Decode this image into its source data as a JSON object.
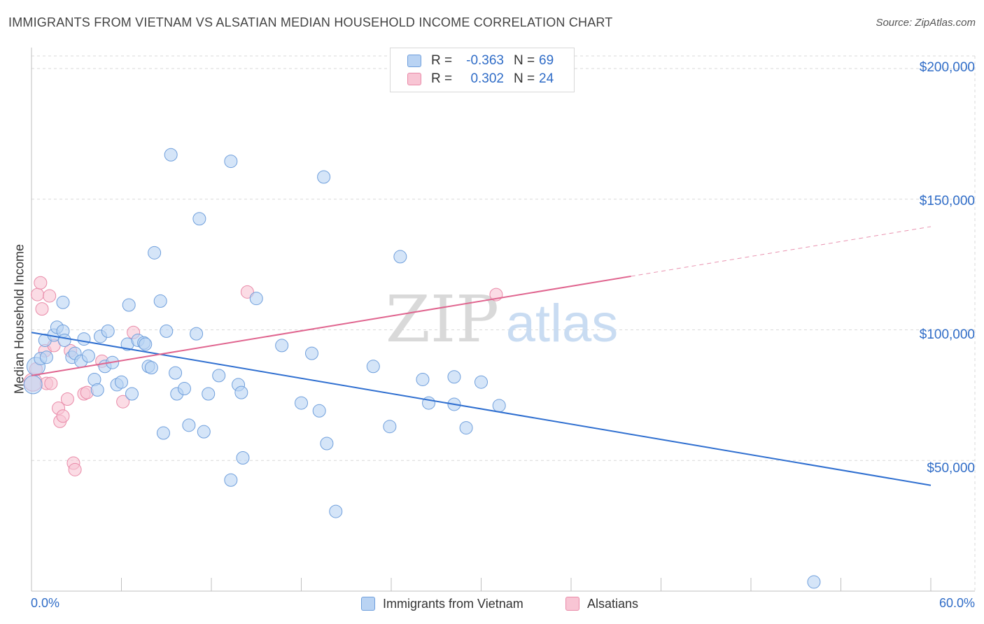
{
  "title": "IMMIGRANTS FROM VIETNAM VS ALSATIAN MEDIAN HOUSEHOLD INCOME CORRELATION CHART",
  "source": "Source: ZipAtlas.com",
  "watermark": {
    "zip": "ZIP",
    "atlas": "atlas"
  },
  "legend": {
    "series": [
      {
        "name": "Immigrants from Vietnam",
        "r_label": "R =",
        "r_value": "-0.363",
        "n_label": "N =",
        "n_value": "69",
        "fill": "#b9d3f3",
        "stroke": "#6f9fdc"
      },
      {
        "name": "Alsatians",
        "r_label": "R =",
        "r_value": "0.302",
        "n_label": "N =",
        "n_value": "24",
        "fill": "#f8c5d4",
        "stroke": "#e98aa8"
      }
    ]
  },
  "colors": {
    "blue_line": "#2f6fd0",
    "pink_line": "#e0658f",
    "axis_text": "#2f6cc7",
    "grid": "#d9d9d9"
  },
  "chart_data": {
    "type": "scatter",
    "title": "IMMIGRANTS FROM VIETNAM VS ALSATIAN MEDIAN HOUSEHOLD INCOME CORRELATION CHART",
    "xlabel": "",
    "ylabel": "Median Household Income",
    "xlim": [
      0,
      60
    ],
    "ylim": [
      0,
      210000
    ],
    "x_tick_labels": [
      "0.0%",
      "60.0%"
    ],
    "y_ticks": [
      {
        "value": 50000,
        "label": "$50,000"
      },
      {
        "value": 100000,
        "label": "$100,000"
      },
      {
        "value": 150000,
        "label": "$150,000"
      },
      {
        "value": 200000,
        "label": "$200,000"
      }
    ],
    "series": [
      {
        "name": "Immigrants from Vietnam",
        "points": [
          [
            0.1,
            79000
          ],
          [
            0.3,
            86000
          ],
          [
            0.6,
            89000
          ],
          [
            0.9,
            96000
          ],
          [
            1.0,
            89500
          ],
          [
            1.5,
            98000
          ],
          [
            1.7,
            101000
          ],
          [
            2.1,
            99500
          ],
          [
            2.2,
            96000
          ],
          [
            2.1,
            110500
          ],
          [
            2.7,
            89500
          ],
          [
            2.9,
            91000
          ],
          [
            3.3,
            88000
          ],
          [
            3.5,
            96500
          ],
          [
            3.8,
            90000
          ],
          [
            4.2,
            81000
          ],
          [
            4.4,
            77000
          ],
          [
            4.6,
            97500
          ],
          [
            4.9,
            86000
          ],
          [
            5.1,
            99500
          ],
          [
            5.4,
            87500
          ],
          [
            5.7,
            79000
          ],
          [
            6.0,
            80000
          ],
          [
            6.4,
            94500
          ],
          [
            6.5,
            109500
          ],
          [
            6.7,
            75500
          ],
          [
            7.1,
            96000
          ],
          [
            7.5,
            95000
          ],
          [
            7.6,
            94500
          ],
          [
            7.8,
            86000
          ],
          [
            8.0,
            85500
          ],
          [
            8.2,
            129500
          ],
          [
            8.6,
            111000
          ],
          [
            8.8,
            60500
          ],
          [
            9.0,
            99500
          ],
          [
            9.3,
            167000
          ],
          [
            9.6,
            83500
          ],
          [
            9.7,
            75500
          ],
          [
            10.2,
            77500
          ],
          [
            10.5,
            63500
          ],
          [
            11.0,
            98500
          ],
          [
            11.2,
            142500
          ],
          [
            11.5,
            61000
          ],
          [
            11.8,
            75500
          ],
          [
            12.5,
            82500
          ],
          [
            13.3,
            164500
          ],
          [
            13.8,
            79000
          ],
          [
            14.0,
            76000
          ],
          [
            14.1,
            51000
          ],
          [
            13.3,
            42500
          ],
          [
            15.0,
            112000
          ],
          [
            16.7,
            94000
          ],
          [
            18.0,
            72000
          ],
          [
            18.7,
            91000
          ],
          [
            19.2,
            69000
          ],
          [
            19.5,
            158500
          ],
          [
            19.7,
            56500
          ],
          [
            20.3,
            30500
          ],
          [
            22.8,
            86000
          ],
          [
            23.9,
            63000
          ],
          [
            24.6,
            128000
          ],
          [
            26.1,
            81000
          ],
          [
            26.5,
            72000
          ],
          [
            28.2,
            82000
          ],
          [
            28.2,
            71500
          ],
          [
            29.0,
            62500
          ],
          [
            30.0,
            80000
          ],
          [
            31.2,
            71000
          ],
          [
            52.2,
            3500
          ]
        ]
      },
      {
        "name": "Alsatians",
        "points": [
          [
            0.1,
            80000
          ],
          [
            0.4,
            113500
          ],
          [
            0.6,
            118000
          ],
          [
            0.7,
            108000
          ],
          [
            0.9,
            92000
          ],
          [
            1.0,
            79500
          ],
          [
            1.2,
            113000
          ],
          [
            1.3,
            79500
          ],
          [
            1.5,
            94000
          ],
          [
            1.8,
            70000
          ],
          [
            1.9,
            65000
          ],
          [
            2.1,
            67000
          ],
          [
            2.4,
            73500
          ],
          [
            2.6,
            92000
          ],
          [
            2.8,
            49000
          ],
          [
            2.9,
            46500
          ],
          [
            3.5,
            75500
          ],
          [
            3.7,
            76000
          ],
          [
            4.7,
            88000
          ],
          [
            6.1,
            72500
          ],
          [
            6.8,
            99000
          ],
          [
            14.4,
            114500
          ],
          [
            31.0,
            113500
          ],
          [
            0.3,
            85000
          ]
        ]
      }
    ],
    "trend_lines": [
      {
        "series": "Immigrants from Vietnam",
        "x_start": 0,
        "y_start": 99000,
        "x_end": 60,
        "y_end": 40500,
        "style": "solid"
      },
      {
        "series": "Alsatians",
        "x_start": 0,
        "y_start": 82500,
        "x_end": 40,
        "y_end": 120500,
        "style": "solid",
        "extension_to_x": 60,
        "extension_to_y": 139500,
        "extension_style": "dashed"
      }
    ]
  }
}
